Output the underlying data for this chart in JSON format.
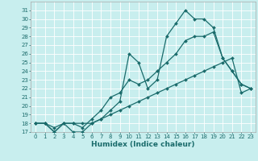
{
  "xlabel": "Humidex (Indice chaleur)",
  "bg_color": "#c8eeee",
  "grid_color": "#ffffff",
  "line_color": "#1a6b6b",
  "xlim": [
    -0.5,
    23.5
  ],
  "ylim": [
    17,
    32
  ],
  "xticks": [
    0,
    1,
    2,
    3,
    4,
    5,
    6,
    7,
    8,
    9,
    10,
    11,
    12,
    13,
    14,
    15,
    16,
    17,
    18,
    19,
    20,
    21,
    22,
    23
  ],
  "yticks": [
    17,
    18,
    19,
    20,
    21,
    22,
    23,
    24,
    25,
    26,
    27,
    28,
    29,
    30,
    31
  ],
  "line1_x": [
    0,
    1,
    2,
    3,
    4,
    5,
    6,
    7,
    8,
    9,
    10,
    11,
    12,
    13,
    14,
    15,
    16,
    17,
    18,
    19,
    20,
    21,
    22,
    23
  ],
  "line1_y": [
    18,
    18,
    17,
    18,
    17,
    17,
    18,
    18.5,
    19.5,
    20.5,
    26,
    25,
    22,
    23,
    28,
    29.5,
    31,
    30,
    30,
    29,
    25.5,
    24,
    22.5,
    22
  ],
  "line2_x": [
    0,
    1,
    2,
    3,
    4,
    5,
    6,
    7,
    8,
    9,
    10,
    11,
    12,
    13,
    14,
    15,
    16,
    17,
    18,
    19,
    20,
    21,
    22,
    23
  ],
  "line2_y": [
    18,
    18,
    17.5,
    18,
    18,
    17.5,
    18.5,
    19.5,
    21,
    21.5,
    23,
    22.5,
    23,
    24,
    25,
    26,
    27.5,
    28,
    28,
    28.5,
    25.5,
    24,
    22.5,
    22
  ],
  "line3_x": [
    0,
    1,
    2,
    3,
    4,
    5,
    6,
    7,
    8,
    9,
    10,
    11,
    12,
    13,
    14,
    15,
    16,
    17,
    18,
    19,
    20,
    21,
    22,
    23
  ],
  "line3_y": [
    18,
    18,
    17,
    18,
    18,
    18,
    18,
    18.5,
    19,
    19.5,
    20,
    20.5,
    21,
    21.5,
    22,
    22.5,
    23,
    23.5,
    24,
    24.5,
    25,
    25.5,
    21.5,
    22
  ],
  "marker_size": 2.0,
  "line_width": 0.9,
  "fontsize_label": 6.5,
  "fontsize_tick": 5.0
}
